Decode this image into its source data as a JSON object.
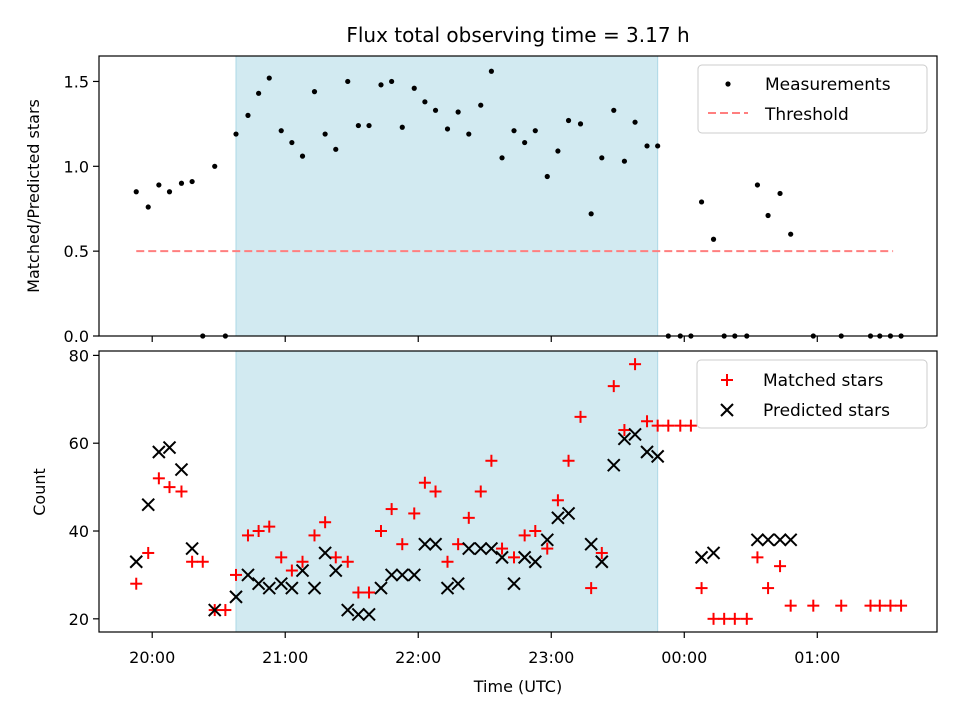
{
  "chart_data": [
    {
      "type": "scatter",
      "title": "Flux total observing time = 3.17 h",
      "xlabel": "",
      "ylabel": "Matched/Predicted stars",
      "ylim": [
        0,
        1.65
      ],
      "yticks": [
        0.0,
        0.5,
        1.0,
        1.5
      ],
      "ytick_labels": [
        "0.0",
        "0.5",
        "1.0",
        "1.5"
      ],
      "x_unit": "hours since 20:00 UTC",
      "xlim": [
        -0.4,
        5.9
      ],
      "shaded_range": [
        0.63,
        3.8
      ],
      "shade_color": "#add8e6",
      "legend_position": "upper right",
      "threshold": {
        "name": "Threshold",
        "y": 0.5,
        "x_range": [
          -0.12,
          5.57
        ],
        "color": "#ff7f7f"
      },
      "series": [
        {
          "name": "Measurements",
          "color": "#000000",
          "marker": "dot",
          "points": [
            [
              -0.12,
              0.85
            ],
            [
              -0.03,
              0.76
            ],
            [
              0.05,
              0.89
            ],
            [
              0.13,
              0.85
            ],
            [
              0.22,
              0.9
            ],
            [
              0.3,
              0.91
            ],
            [
              0.38,
              0.0
            ],
            [
              0.47,
              1.0
            ],
            [
              0.55,
              0.0
            ],
            [
              0.63,
              1.19
            ],
            [
              0.72,
              1.3
            ],
            [
              0.8,
              1.43
            ],
            [
              0.88,
              1.52
            ],
            [
              0.97,
              1.21
            ],
            [
              1.05,
              1.14
            ],
            [
              1.13,
              1.06
            ],
            [
              1.22,
              1.44
            ],
            [
              1.3,
              1.19
            ],
            [
              1.38,
              1.1
            ],
            [
              1.47,
              1.5
            ],
            [
              1.55,
              1.24
            ],
            [
              1.63,
              1.24
            ],
            [
              1.72,
              1.48
            ],
            [
              1.8,
              1.5
            ],
            [
              1.88,
              1.23
            ],
            [
              1.97,
              1.46
            ],
            [
              2.05,
              1.38
            ],
            [
              2.13,
              1.33
            ],
            [
              2.22,
              1.22
            ],
            [
              2.3,
              1.32
            ],
            [
              2.38,
              1.19
            ],
            [
              2.47,
              1.36
            ],
            [
              2.55,
              1.56
            ],
            [
              2.63,
              1.05
            ],
            [
              2.72,
              1.21
            ],
            [
              2.8,
              1.14
            ],
            [
              2.88,
              1.21
            ],
            [
              2.97,
              0.94
            ],
            [
              3.05,
              1.09
            ],
            [
              3.13,
              1.27
            ],
            [
              3.22,
              1.25
            ],
            [
              3.3,
              0.72
            ],
            [
              3.38,
              1.05
            ],
            [
              3.47,
              1.33
            ],
            [
              3.55,
              1.03
            ],
            [
              3.63,
              1.26
            ],
            [
              3.72,
              1.12
            ],
            [
              3.8,
              1.12
            ],
            [
              3.88,
              0.0
            ],
            [
              3.97,
              0.0
            ],
            [
              4.05,
              0.0
            ],
            [
              4.13,
              0.79
            ],
            [
              4.22,
              0.57
            ],
            [
              4.3,
              0.0
            ],
            [
              4.38,
              0.0
            ],
            [
              4.47,
              0.0
            ],
            [
              4.55,
              0.89
            ],
            [
              4.63,
              0.71
            ],
            [
              4.72,
              0.84
            ],
            [
              4.8,
              0.6
            ],
            [
              4.97,
              0.0
            ],
            [
              5.18,
              0.0
            ],
            [
              5.4,
              0.0
            ],
            [
              5.47,
              0.0
            ],
            [
              5.55,
              0.0
            ],
            [
              5.63,
              0.0
            ]
          ]
        }
      ]
    },
    {
      "type": "scatter",
      "xlabel": "Time (UTC)",
      "ylabel": "Count",
      "ylim": [
        17,
        81
      ],
      "yticks": [
        20,
        40,
        60,
        80
      ],
      "ytick_labels": [
        "20",
        "40",
        "60",
        "80"
      ],
      "x_unit": "hours since 20:00 UTC",
      "xlim": [
        -0.4,
        5.9
      ],
      "xticks": [
        0,
        1,
        2,
        3,
        4,
        5
      ],
      "xtick_labels": [
        "20:00",
        "21:00",
        "22:00",
        "23:00",
        "00:00",
        "01:00"
      ],
      "shaded_range": [
        0.63,
        3.8
      ],
      "shade_color": "#add8e6",
      "legend_position": "upper right",
      "series": [
        {
          "name": "Matched stars",
          "color": "#ff0000",
          "marker": "plus",
          "points": [
            [
              -0.12,
              28
            ],
            [
              -0.03,
              35
            ],
            [
              0.05,
              52
            ],
            [
              0.13,
              50
            ],
            [
              0.22,
              49
            ],
            [
              0.3,
              33
            ],
            [
              0.38,
              33
            ],
            [
              0.47,
              22
            ],
            [
              0.55,
              22
            ],
            [
              0.63,
              30
            ],
            [
              0.72,
              39
            ],
            [
              0.8,
              40
            ],
            [
              0.88,
              41
            ],
            [
              0.97,
              34
            ],
            [
              1.05,
              31
            ],
            [
              1.13,
              33
            ],
            [
              1.22,
              39
            ],
            [
              1.3,
              42
            ],
            [
              1.38,
              34
            ],
            [
              1.47,
              33
            ],
            [
              1.55,
              26
            ],
            [
              1.63,
              26
            ],
            [
              1.72,
              40
            ],
            [
              1.8,
              45
            ],
            [
              1.88,
              37
            ],
            [
              1.97,
              44
            ],
            [
              2.05,
              51
            ],
            [
              2.13,
              49
            ],
            [
              2.22,
              33
            ],
            [
              2.3,
              37
            ],
            [
              2.38,
              43
            ],
            [
              2.47,
              49
            ],
            [
              2.55,
              56
            ],
            [
              2.63,
              36
            ],
            [
              2.72,
              34
            ],
            [
              2.8,
              39
            ],
            [
              2.88,
              40
            ],
            [
              2.97,
              36
            ],
            [
              3.05,
              47
            ],
            [
              3.13,
              56
            ],
            [
              3.22,
              66
            ],
            [
              3.3,
              27
            ],
            [
              3.38,
              35
            ],
            [
              3.47,
              73
            ],
            [
              3.55,
              63
            ],
            [
              3.63,
              78
            ],
            [
              3.72,
              65
            ],
            [
              3.8,
              64
            ],
            [
              3.88,
              64
            ],
            [
              3.97,
              64
            ],
            [
              4.05,
              64
            ],
            [
              4.13,
              27
            ],
            [
              4.22,
              20
            ],
            [
              4.3,
              20
            ],
            [
              4.38,
              20
            ],
            [
              4.47,
              20
            ],
            [
              4.55,
              34
            ],
            [
              4.63,
              27
            ],
            [
              4.72,
              32
            ],
            [
              4.8,
              23
            ],
            [
              4.97,
              23
            ],
            [
              5.18,
              23
            ],
            [
              5.4,
              23
            ],
            [
              5.47,
              23
            ],
            [
              5.55,
              23
            ],
            [
              5.63,
              23
            ]
          ]
        },
        {
          "name": "Predicted stars",
          "color": "#000000",
          "marker": "x",
          "points": [
            [
              -0.12,
              33
            ],
            [
              -0.03,
              46
            ],
            [
              0.05,
              58
            ],
            [
              0.13,
              59
            ],
            [
              0.22,
              54
            ],
            [
              0.3,
              36
            ],
            [
              0.47,
              22
            ],
            [
              0.63,
              25
            ],
            [
              0.72,
              30
            ],
            [
              0.8,
              28
            ],
            [
              0.88,
              27
            ],
            [
              0.97,
              28
            ],
            [
              1.05,
              27
            ],
            [
              1.13,
              31
            ],
            [
              1.22,
              27
            ],
            [
              1.3,
              35
            ],
            [
              1.38,
              31
            ],
            [
              1.47,
              22
            ],
            [
              1.55,
              21
            ],
            [
              1.63,
              21
            ],
            [
              1.72,
              27
            ],
            [
              1.8,
              30
            ],
            [
              1.88,
              30
            ],
            [
              1.97,
              30
            ],
            [
              2.05,
              37
            ],
            [
              2.13,
              37
            ],
            [
              2.22,
              27
            ],
            [
              2.3,
              28
            ],
            [
              2.38,
              36
            ],
            [
              2.47,
              36
            ],
            [
              2.55,
              36
            ],
            [
              2.63,
              34
            ],
            [
              2.72,
              28
            ],
            [
              2.8,
              34
            ],
            [
              2.88,
              33
            ],
            [
              2.97,
              38
            ],
            [
              3.05,
              43
            ],
            [
              3.13,
              44
            ],
            [
              3.3,
              37
            ],
            [
              3.38,
              33
            ],
            [
              3.47,
              55
            ],
            [
              3.55,
              61
            ],
            [
              3.63,
              62
            ],
            [
              3.72,
              58
            ],
            [
              3.8,
              57
            ],
            [
              4.13,
              34
            ],
            [
              4.22,
              35
            ],
            [
              4.55,
              38
            ],
            [
              4.63,
              38
            ],
            [
              4.72,
              38
            ],
            [
              4.8,
              38
            ]
          ]
        }
      ]
    }
  ]
}
